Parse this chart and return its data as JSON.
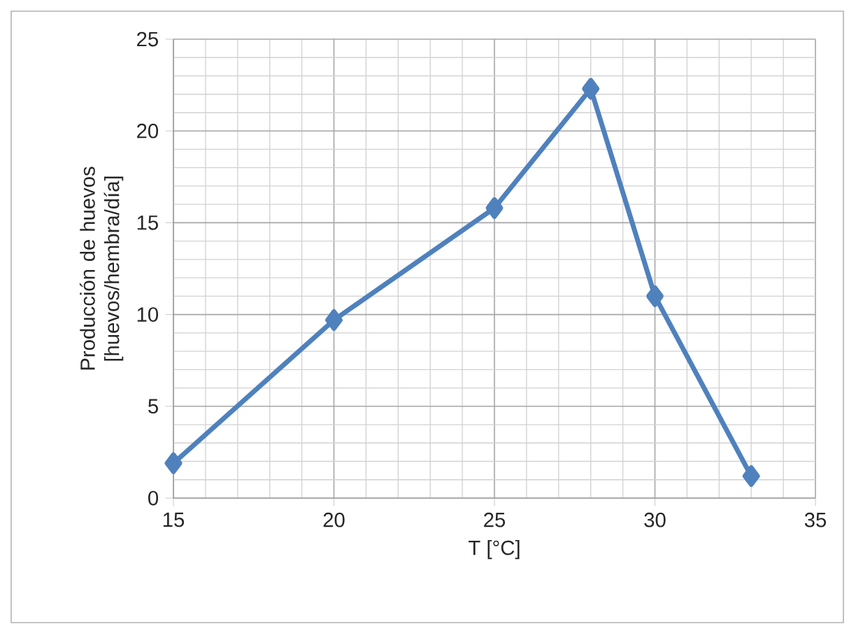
{
  "chart_data": {
    "type": "line",
    "xlabel": "T [°C]",
    "ylabel": "Producción de huevos [huevos/hembra/día]",
    "x": [
      15,
      20,
      25,
      28,
      30,
      33
    ],
    "series": [
      {
        "color": "#4f81bd",
        "values": [
          1.9,
          9.7,
          15.8,
          22.3,
          11.0,
          1.2
        ]
      }
    ],
    "xlim": [
      15,
      35
    ],
    "xticks": [
      15,
      20,
      25,
      30,
      35
    ],
    "ylim": [
      0,
      25
    ],
    "yticks": [
      0,
      5,
      10,
      15,
      20,
      25
    ],
    "grid": true,
    "marker": "diamond",
    "line_style": "solid"
  }
}
